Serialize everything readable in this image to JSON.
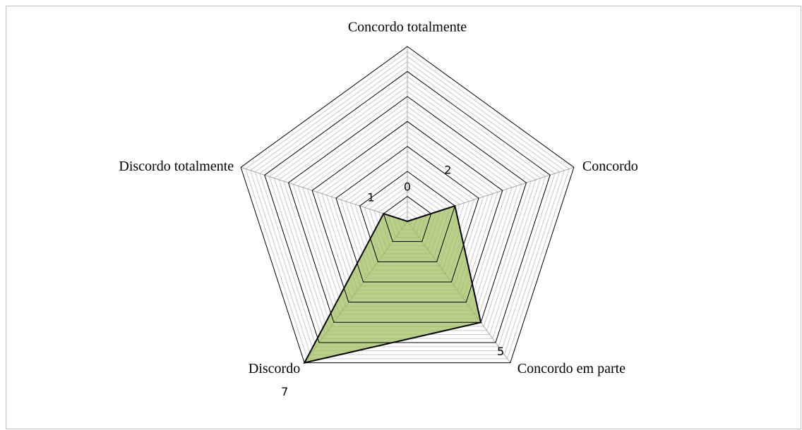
{
  "chart_data": {
    "type": "radar",
    "categories": [
      "Concordo totalmente",
      "Concordo",
      "Concordo em parte",
      "Discordo",
      "Discordo totalmente"
    ],
    "values": [
      0,
      2,
      5,
      7,
      1
    ],
    "color": "#9bbb59",
    "line_color": "#000000",
    "ylim": [
      0,
      7
    ],
    "yticks": [
      0,
      1,
      2,
      3,
      4,
      5,
      6,
      7
    ],
    "grid": true,
    "minor_grid_divisions": 5
  }
}
